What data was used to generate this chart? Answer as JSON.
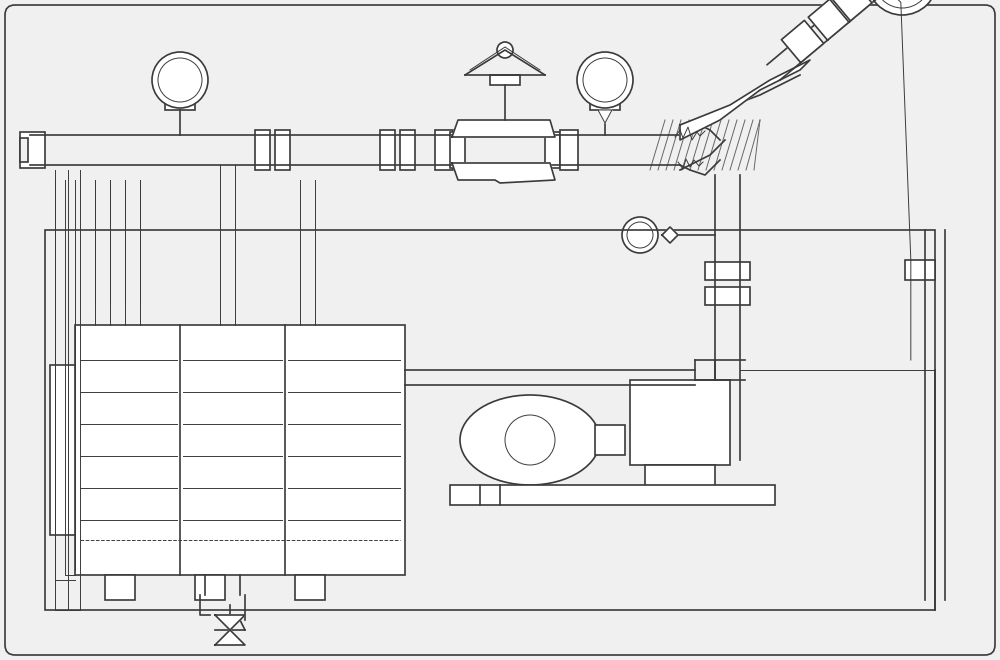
{
  "bg_color": "#f0f0f0",
  "line_color": "#3a3a3a",
  "lw": 1.2,
  "tlw": 0.7,
  "thk": 2.0,
  "fig_width": 10.0,
  "fig_height": 6.6,
  "dpi": 100
}
